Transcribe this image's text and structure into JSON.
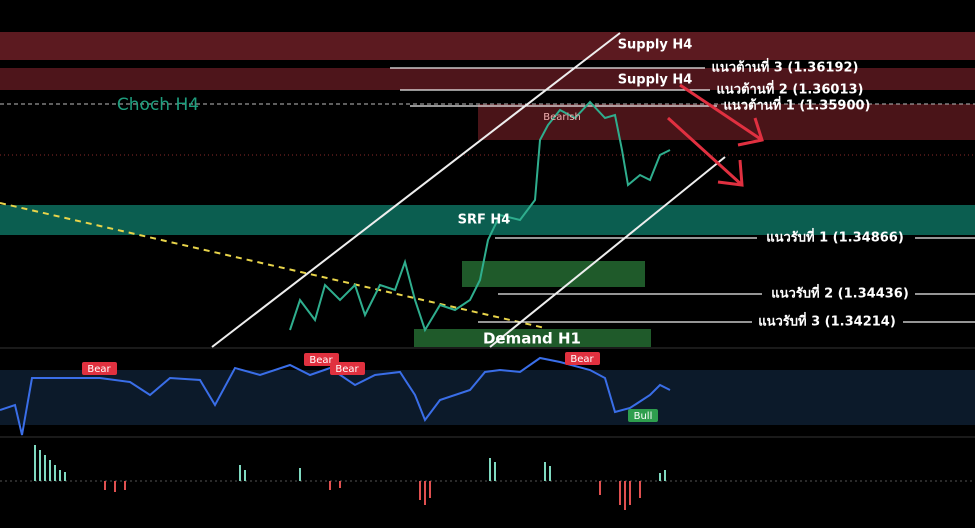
{
  "zones": [
    {
      "label": "Supply H4"
    },
    {
      "label": "Supply H4"
    },
    {
      "label": "Choch H4"
    },
    {
      "label": "SRF H4"
    },
    {
      "label": "Demand H1"
    }
  ],
  "levels": [
    {
      "label": "แนวต้านที่ 3 (1.36192)"
    },
    {
      "label": "แนวต้านที่ 2 (1.36013)"
    },
    {
      "label": "แนวต้านที่ 1 (1.35900)"
    },
    {
      "label": "แนวรับที่ 1 (1.34866)"
    },
    {
      "label": "แนวรับที่ 2 (1.34436)"
    },
    {
      "label": "แนวรับที่ 3 (1.34214)"
    }
  ],
  "signals": [
    {
      "label": "Bearish"
    },
    {
      "label": "Bear"
    },
    {
      "label": "Bear"
    },
    {
      "label": "Bear"
    },
    {
      "label": "Bear"
    },
    {
      "label": "Bull"
    }
  ]
}
